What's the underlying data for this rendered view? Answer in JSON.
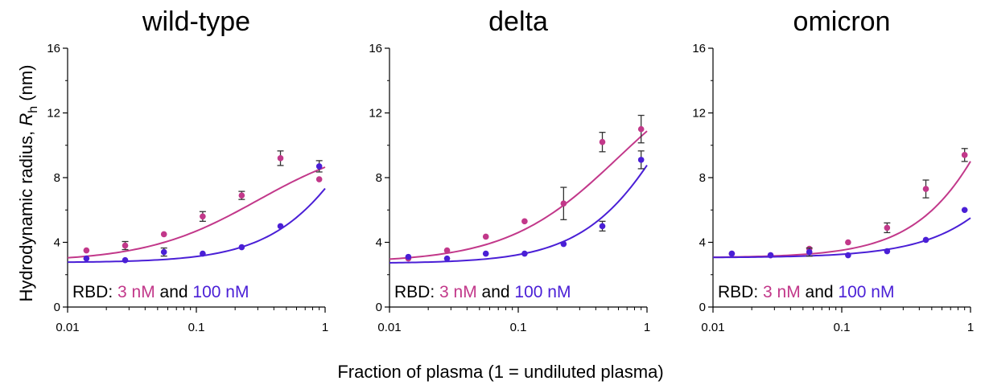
{
  "figure": {
    "ylabel_main": "Hydrodynamic radius, ",
    "ylabel_symbol": "R",
    "ylabel_sub": "h",
    "ylabel_unit": " (nm)",
    "xlabel": "Fraction of plasma (1 = undiluted plasma)"
  },
  "legend": {
    "prefix": "RBD:",
    "low": "3 nM",
    "mid": "and",
    "high": "100 nM"
  },
  "colors": {
    "low": "#c2388a",
    "high": "#4a1fd6",
    "errorbar": "#333333",
    "axis": "#000000"
  },
  "chart_data": [
    {
      "type": "scatter",
      "title": "wild-type",
      "xscale": "log",
      "xlim": [
        0.01,
        1
      ],
      "ylim": [
        0,
        16
      ],
      "xticks": [
        "0.01",
        "0.1",
        "1"
      ],
      "yticks": [
        "0",
        "4",
        "8",
        "12",
        "16"
      ],
      "series": [
        {
          "name": "3 nM",
          "x": [
            0.014,
            0.028,
            0.056,
            0.112,
            0.225,
            0.45,
            0.9
          ],
          "y": [
            3.5,
            3.8,
            4.5,
            5.6,
            6.9,
            9.2,
            7.9
          ],
          "err": [
            0,
            0.25,
            0,
            0.3,
            0.25,
            0.45,
            0
          ],
          "fit": {
            "a": 2.8,
            "b": 7.6,
            "n": 1.0,
            "k": 0.3
          }
        },
        {
          "name": "100 nM",
          "x": [
            0.014,
            0.028,
            0.056,
            0.112,
            0.225,
            0.45,
            0.9
          ],
          "y": [
            3.0,
            2.9,
            3.4,
            3.3,
            3.7,
            5.0,
            8.7
          ],
          "err": [
            0,
            0,
            0.25,
            0,
            0,
            0,
            0.35
          ],
          "fit": {
            "a": 2.75,
            "b": 19,
            "n": 1.2,
            "k": 2.6
          }
        }
      ]
    },
    {
      "type": "scatter",
      "title": "delta",
      "xscale": "log",
      "xlim": [
        0.01,
        1
      ],
      "ylim": [
        0,
        16
      ],
      "xticks": [
        "0.01",
        "0.1",
        "1"
      ],
      "yticks": [
        "0",
        "4",
        "8",
        "12",
        "16"
      ],
      "series": [
        {
          "name": "3 nM",
          "x": [
            0.014,
            0.028,
            0.056,
            0.112,
            0.225,
            0.45,
            0.9
          ],
          "y": [
            3.0,
            3.5,
            4.35,
            5.3,
            6.4,
            10.2,
            11.0
          ],
          "err": [
            0,
            0,
            0,
            0,
            1.0,
            0.6,
            0.85
          ],
          "fit": {
            "a": 2.75,
            "b": 13,
            "n": 1.0,
            "k": 0.6
          }
        },
        {
          "name": "100 nM",
          "x": [
            0.014,
            0.028,
            0.056,
            0.112,
            0.225,
            0.45,
            0.9
          ],
          "y": [
            3.1,
            3.0,
            3.3,
            3.3,
            3.9,
            5.0,
            9.1
          ],
          "err": [
            0,
            0,
            0,
            0,
            0,
            0.3,
            0.55
          ],
          "fit": {
            "a": 2.7,
            "b": 20,
            "n": 1.2,
            "k": 2.0
          }
        }
      ]
    },
    {
      "type": "scatter",
      "title": "omicron",
      "xscale": "log",
      "xlim": [
        0.01,
        1
      ],
      "ylim": [
        0,
        16
      ],
      "xticks": [
        "0.01",
        "0.1",
        "1"
      ],
      "yticks": [
        "0",
        "4",
        "8",
        "12",
        "16"
      ],
      "series": [
        {
          "name": "3 nM",
          "x": [
            0.014,
            0.028,
            0.056,
            0.112,
            0.225,
            0.45,
            0.9
          ],
          "y": [
            3.3,
            3.2,
            3.6,
            4.0,
            4.9,
            7.3,
            9.4
          ],
          "err": [
            0,
            0,
            0,
            0,
            0.3,
            0.55,
            0.4
          ],
          "fit": {
            "a": 3.05,
            "b": 30,
            "n": 1.2,
            "k": 3.2
          }
        },
        {
          "name": "100 nM",
          "x": [
            0.014,
            0.028,
            0.056,
            0.112,
            0.225,
            0.45,
            0.9
          ],
          "y": [
            3.3,
            3.2,
            3.4,
            3.2,
            3.45,
            4.15,
            6.0
          ],
          "err": [
            0,
            0,
            0.25,
            0,
            0,
            0,
            0
          ],
          "fit": {
            "a": 3.05,
            "b": 30,
            "n": 1.1,
            "k": 9.0
          }
        }
      ]
    }
  ]
}
